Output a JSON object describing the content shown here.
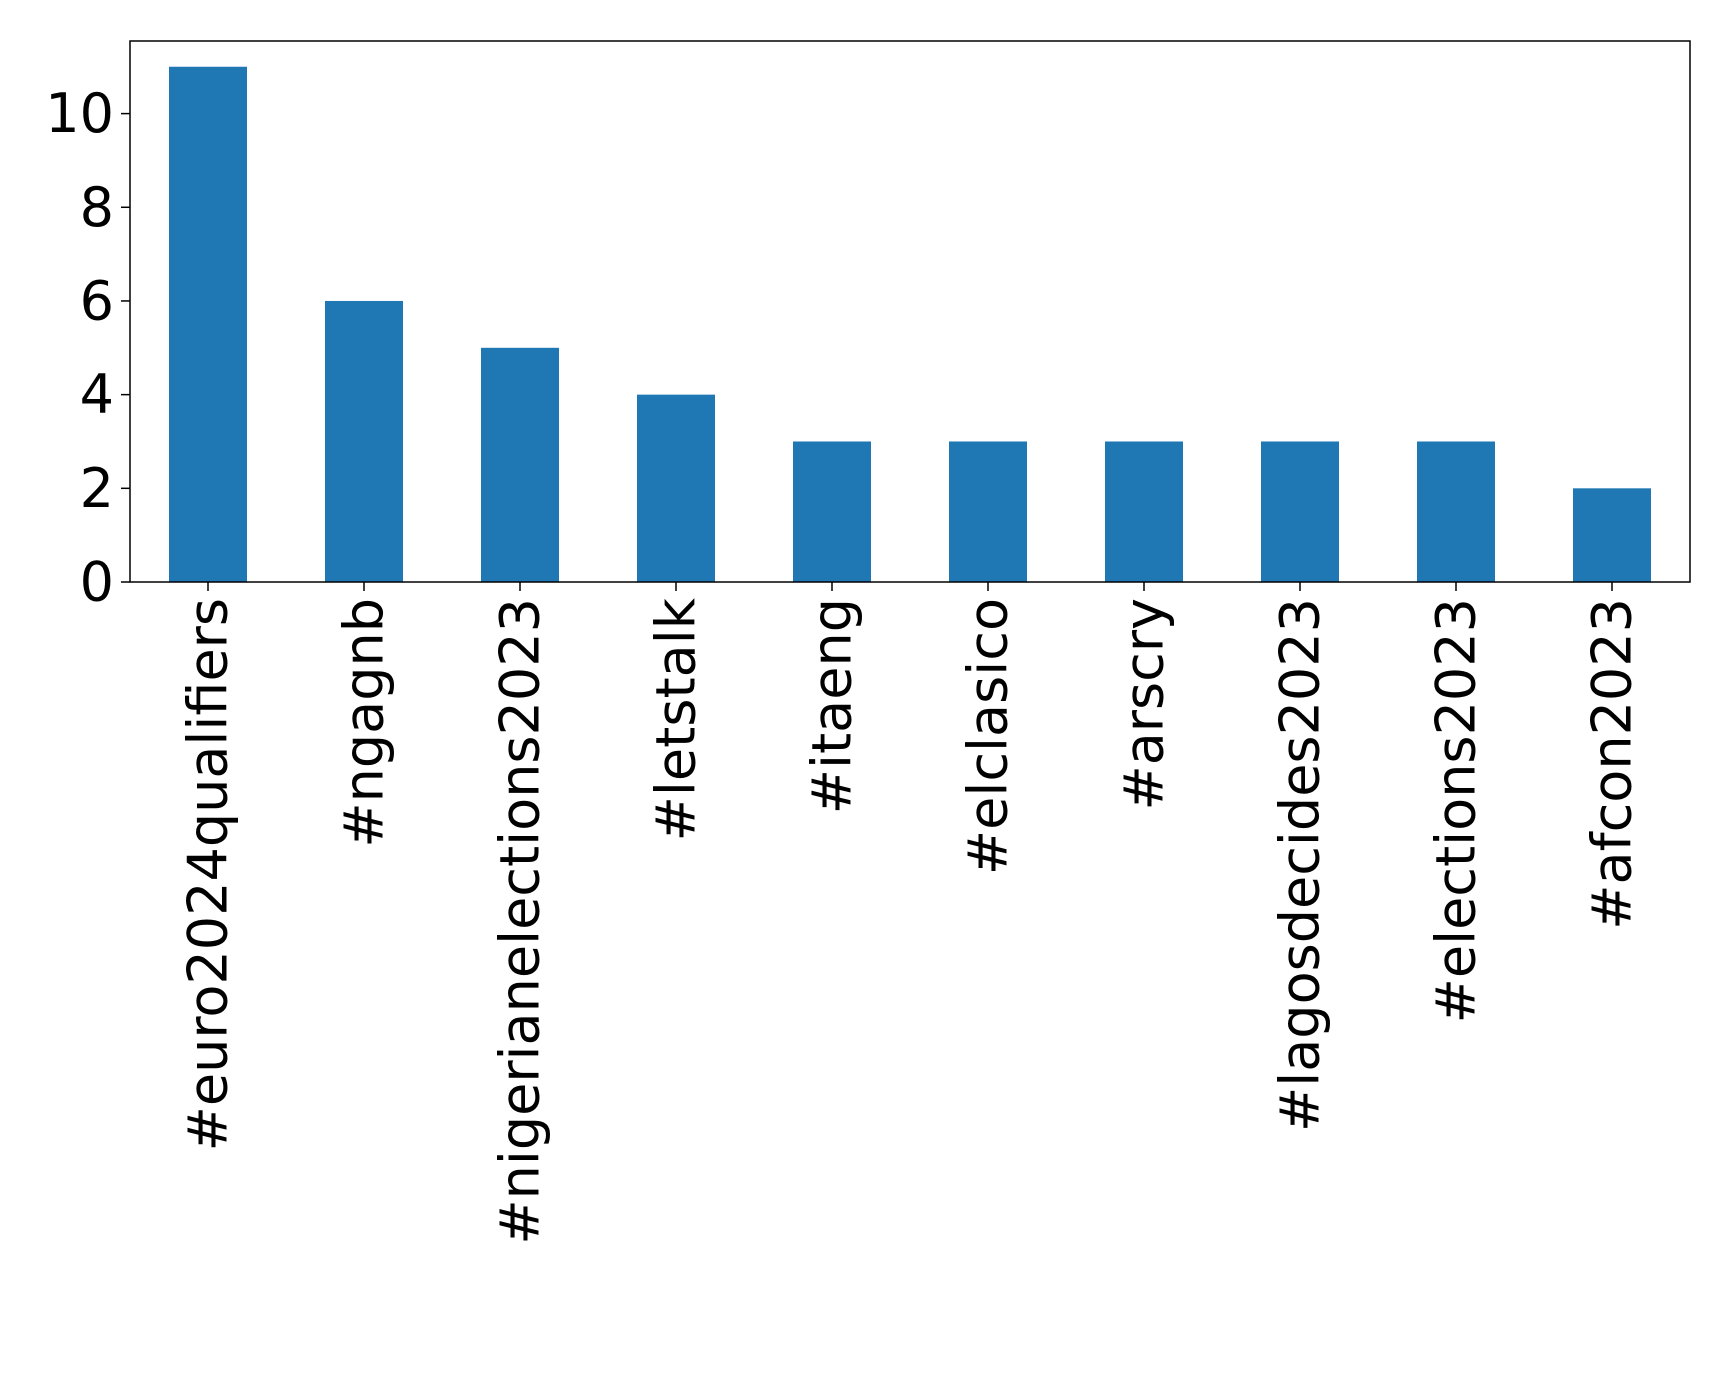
{
  "chart_data": {
    "type": "bar",
    "title": "",
    "xlabel": "",
    "ylabel": "",
    "categories": [
      "#euro2024qualifiers",
      "#ngagnb",
      "#nigerianelections2023",
      "#letstalk",
      "#itaeng",
      "#elclasico",
      "#arscry",
      "#lagosdecides2023",
      "#elections2023",
      "#afcon2023"
    ],
    "values": [
      11,
      6,
      5,
      4,
      3,
      3,
      3,
      3,
      3,
      2
    ],
    "ylim": [
      0,
      11.55
    ],
    "yticks": [
      0,
      2,
      4,
      6,
      8,
      10
    ],
    "grid": false,
    "legend": "none",
    "bar_color": "#1f77b4"
  }
}
